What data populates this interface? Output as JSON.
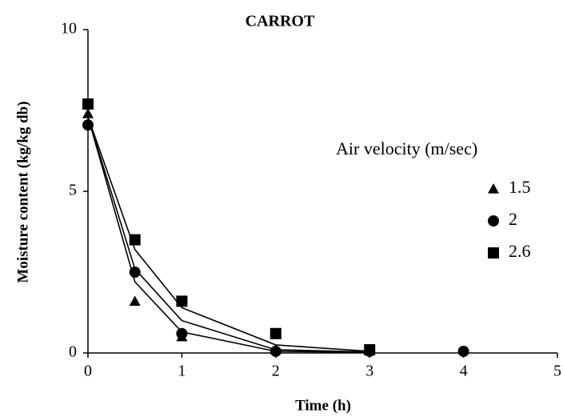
{
  "chart_data": {
    "type": "scatter",
    "title": "CARROT",
    "x_label": "Time (h)",
    "y_label": "Moisture content (kg/kg db)",
    "legend_title": "Air velocity (m/sec)",
    "legend": "right",
    "xlim": [
      0,
      5
    ],
    "xticks": [
      0,
      1,
      2,
      3,
      4,
      5
    ],
    "ylim": [
      0,
      10
    ],
    "yticks": [
      0,
      5,
      10
    ],
    "fit_x": [
      0,
      0.5,
      1,
      2,
      3
    ],
    "series": [
      {
        "name": "1.5",
        "marker": "triangle",
        "color": "#000000",
        "x": [
          0,
          0.5,
          1,
          2
        ],
        "values": [
          7.4,
          1.6,
          0.5,
          0.1
        ],
        "fit": [
          7.3,
          2.2,
          0.65,
          0.05,
          0.02
        ]
      },
      {
        "name": "2",
        "marker": "circle",
        "color": "#000000",
        "x": [
          0,
          0.5,
          1,
          2,
          3,
          4
        ],
        "values": [
          7.05,
          2.5,
          0.6,
          0.05,
          0.05,
          0.05
        ],
        "fit": [
          7.3,
          2.6,
          1.0,
          0.1,
          0.03
        ]
      },
      {
        "name": "2.6",
        "marker": "square",
        "color": "#000000",
        "x": [
          0,
          0.5,
          1,
          2,
          3
        ],
        "values": [
          7.7,
          3.5,
          1.6,
          0.6,
          0.1
        ],
        "fit": [
          7.3,
          3.2,
          1.4,
          0.25,
          0.05
        ]
      }
    ]
  }
}
